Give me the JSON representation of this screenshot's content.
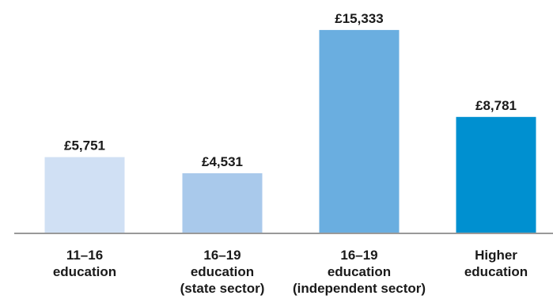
{
  "chart_data": {
    "type": "bar",
    "title": "",
    "xlabel": "",
    "ylabel": "",
    "ylim": [
      0,
      17000
    ],
    "grid": false,
    "legend": "none",
    "categories": [
      [
        "11–16",
        "education"
      ],
      [
        "16–19",
        "education",
        "(state sector)"
      ],
      [
        "16–19",
        "education",
        "(independent sector)"
      ],
      [
        "Higher",
        "education"
      ]
    ],
    "values": [
      5751,
      4531,
      15333,
      8781
    ],
    "value_labels": [
      "£5,751",
      "£4,531",
      "£15,333",
      "£8,781"
    ],
    "bar_colors": [
      "#d0e0f4",
      "#a9c9eb",
      "#6aaee0",
      "#0090d0"
    ],
    "axis_color": "#999999"
  }
}
